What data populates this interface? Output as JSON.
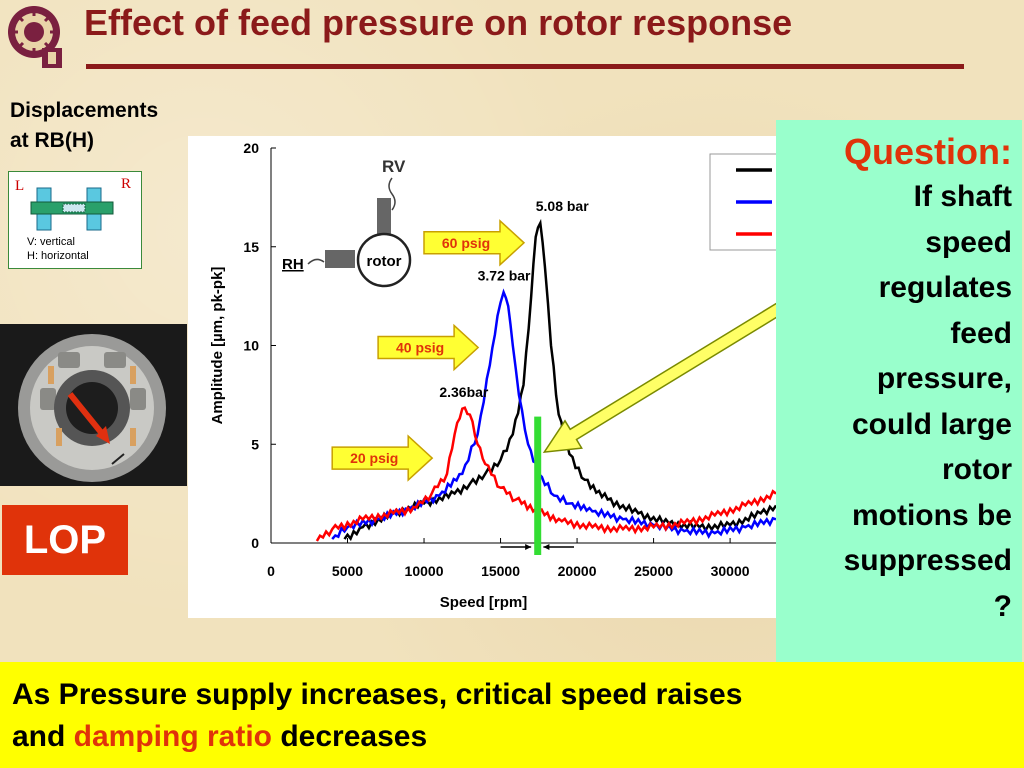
{
  "slide": {
    "title": "Effect of feed pressure on rotor response",
    "colors": {
      "title": "#8b1a1a",
      "accent_red": "#e0330a",
      "question_bg": "#99ffcc",
      "bottom_bg": "#ffff00"
    }
  },
  "left_panel": {
    "displacements_line1": "Displacements",
    "displacements_line2": "at RB(H)",
    "bearing_L": "L",
    "bearing_R": "R",
    "legend_vertical": "V: vertical",
    "legend_horizontal": "H: horizontal",
    "lop_label": "LOP"
  },
  "question": {
    "title": "Question:",
    "lines": [
      "If shaft",
      "speed",
      "regulates",
      "feed",
      "pressure,",
      "could large",
      "rotor",
      "motions be",
      "suppressed",
      "?"
    ]
  },
  "bottom": {
    "line1": "As Pressure supply increases, critical speed raises",
    "line2_prefix": "and ",
    "line2_highlight": "damping ratio",
    "line2_suffix": " decreases"
  },
  "chart_data": {
    "type": "line",
    "xlabel": "Speed [rpm]",
    "ylabel": "Amplitude [µm, pk-pk]",
    "xlim": [
      0,
      33000
    ],
    "ylim": [
      0,
      20
    ],
    "xticks": [
      "0",
      "5000",
      "10000",
      "15000",
      "20000",
      "25000",
      "30000"
    ],
    "yticks": [
      "0",
      "5",
      "10",
      "15",
      "20"
    ],
    "grid": false,
    "legend_placement": "top-right",
    "inset_labels": {
      "rv": "RV",
      "rh": "RH",
      "rotor": "rotor"
    },
    "series": [
      {
        "color": "#000000",
        "x": [
          4800,
          6000,
          8000,
          10000,
          12000,
          13000,
          14000,
          15000,
          15800,
          16500,
          17000,
          17300,
          17600,
          17900,
          18300,
          18800,
          19500,
          20500,
          22000,
          24000,
          26000,
          28000,
          30000,
          32000,
          33000
        ],
        "y": [
          0.2,
          0.8,
          1.5,
          2.0,
          2.5,
          3.0,
          3.5,
          4.2,
          5.5,
          8.0,
          12.5,
          15.5,
          16.2,
          14.0,
          10.0,
          6.5,
          4.5,
          3.2,
          2.2,
          1.5,
          1.0,
          0.8,
          0.9,
          1.5,
          1.9
        ]
      },
      {
        "color": "#0000ff",
        "x": [
          4000,
          5000,
          7000,
          9000,
          11000,
          12500,
          13500,
          14300,
          14800,
          15200,
          15500,
          15800,
          16200,
          16800,
          17500,
          18500,
          19500,
          21000,
          23000,
          25000,
          27000,
          29000,
          31000,
          33000
        ],
        "y": [
          0.2,
          0.8,
          1.2,
          1.7,
          2.4,
          3.5,
          5.5,
          9.0,
          11.5,
          12.7,
          12.0,
          10.0,
          7.5,
          5.0,
          3.5,
          2.4,
          2.0,
          1.6,
          1.2,
          0.9,
          0.6,
          0.5,
          0.8,
          1.2
        ]
      },
      {
        "color": "#ff0000",
        "x": [
          3000,
          4000,
          6000,
          8000,
          9500,
          10500,
          11500,
          12000,
          12500,
          13000,
          13500,
          14000,
          15000,
          16000,
          17500,
          19000,
          21000,
          23000,
          25000,
          27000,
          29000,
          31000,
          33000
        ],
        "y": [
          0.1,
          0.7,
          1.2,
          1.5,
          1.8,
          2.5,
          3.5,
          5.5,
          6.8,
          6.5,
          5.0,
          4.0,
          2.8,
          2.2,
          1.6,
          1.1,
          0.8,
          0.7,
          0.8,
          1.0,
          1.4,
          1.9,
          2.5
        ]
      }
    ],
    "annotations": [
      {
        "text": "5.08 bar",
        "x": 17300,
        "y": 16.8
      },
      {
        "text": "3.72 bar",
        "x": 13500,
        "y": 13.3
      },
      {
        "text": "2.36bar",
        "x": 11000,
        "y": 7.4
      },
      {
        "text": "60 psig",
        "x": 10000,
        "y": 15.2,
        "arrow": true
      },
      {
        "text": "40 psig",
        "x": 7000,
        "y": 9.9,
        "arrow": true
      },
      {
        "text": "20 psig",
        "x": 4000,
        "y": 4.3,
        "arrow": true
      }
    ]
  }
}
